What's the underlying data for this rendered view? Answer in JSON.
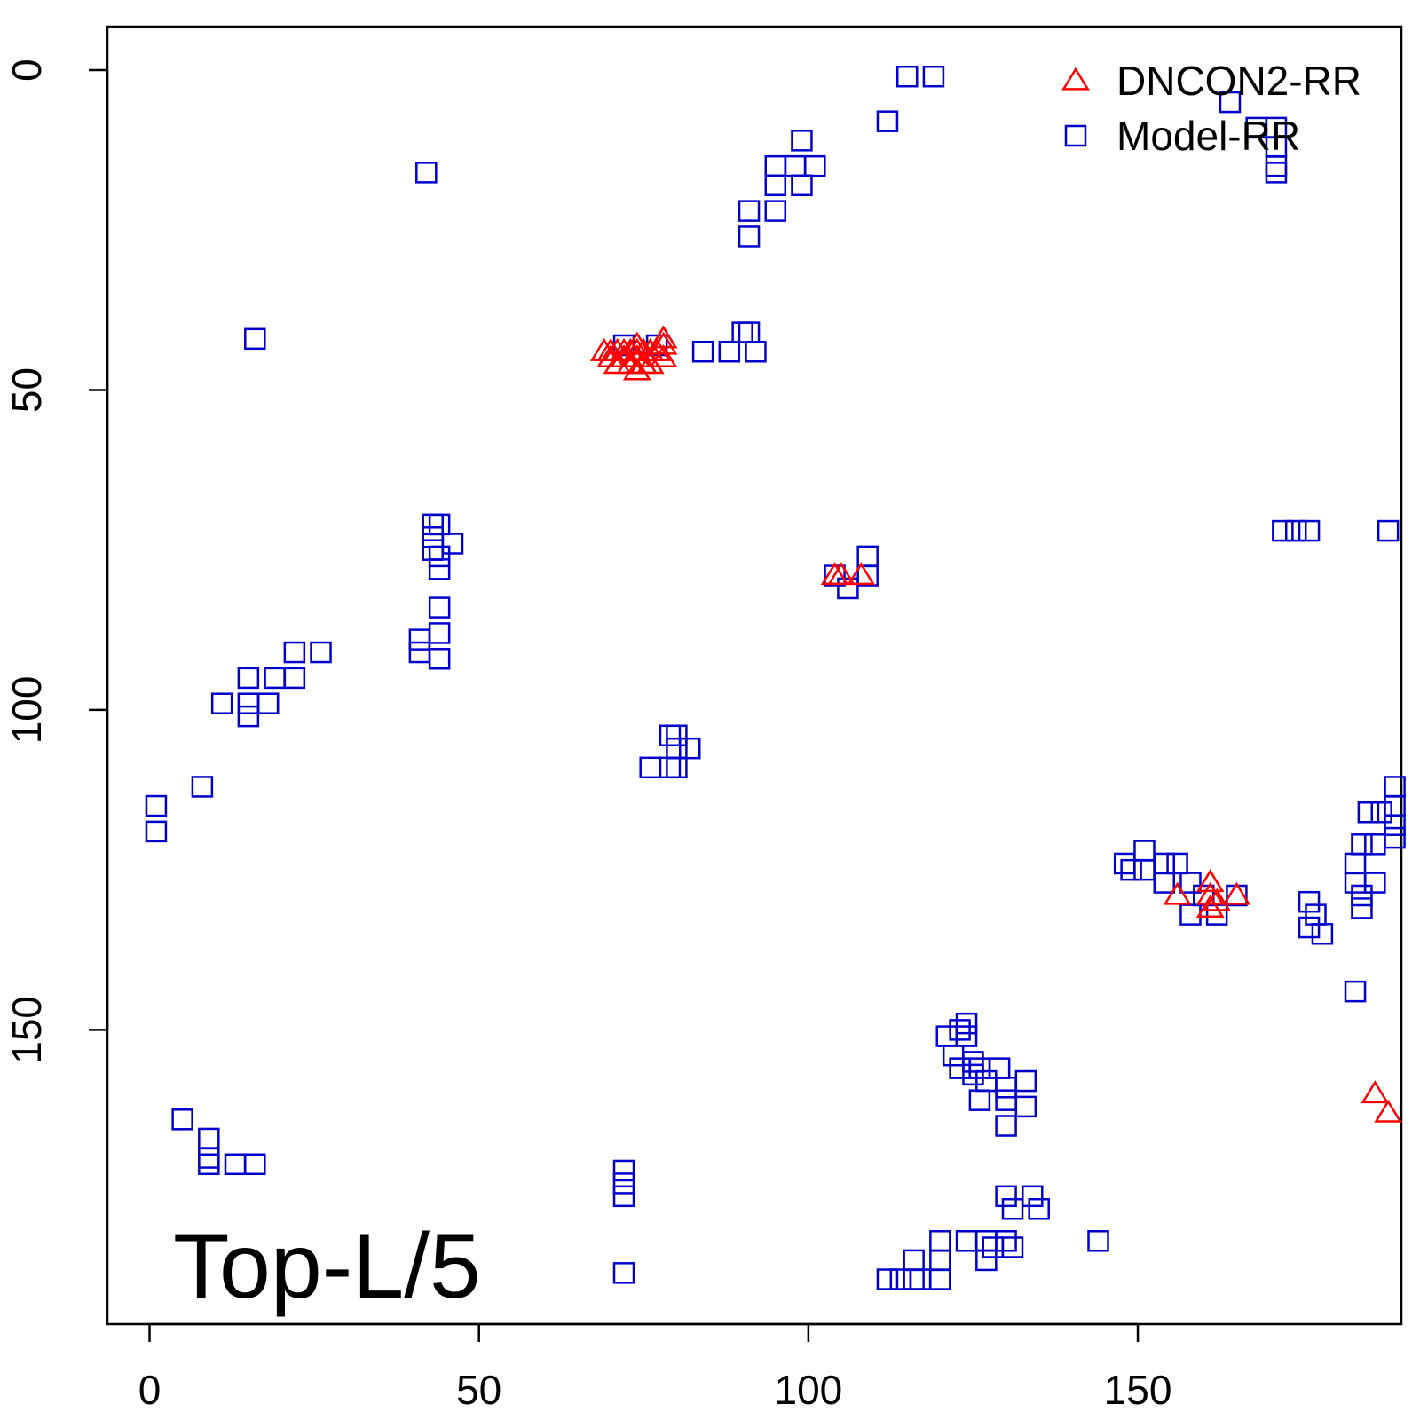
{
  "chart_data": {
    "type": "scatter",
    "title": "",
    "xlabel": "",
    "ylabel": "",
    "xlim": [
      -6.4,
      190
    ],
    "ylim": [
      -6.8,
      196
    ],
    "y_axis_reversed": true,
    "x_ticks": [
      0,
      50,
      100,
      150
    ],
    "x_tick_labels": [
      "0",
      "50",
      "100",
      "150"
    ],
    "y_ticks": [
      0,
      50,
      100,
      150
    ],
    "y_tick_labels": [
      "0",
      "50",
      "100",
      "150"
    ],
    "grid": false,
    "legend_position": "top-right",
    "annotation": "Top-L/5",
    "series": [
      {
        "name": "DNCON2-RR",
        "marker": "triangle",
        "color": "#ff0000",
        "points": [
          [
            69,
            44
          ],
          [
            70,
            44
          ],
          [
            71,
            44
          ],
          [
            72,
            44
          ],
          [
            73,
            44
          ],
          [
            74,
            44
          ],
          [
            75,
            44
          ],
          [
            76,
            44
          ],
          [
            77,
            44
          ],
          [
            78,
            43
          ],
          [
            70,
            45
          ],
          [
            72,
            45
          ],
          [
            74,
            45
          ],
          [
            76,
            46
          ],
          [
            78,
            45
          ],
          [
            71,
            46
          ],
          [
            73,
            46
          ],
          [
            75,
            46
          ],
          [
            74,
            47
          ],
          [
            74,
            43
          ],
          [
            78,
            42
          ],
          [
            104,
            79
          ],
          [
            105,
            79
          ],
          [
            108,
            79
          ],
          [
            156,
            129
          ],
          [
            161,
            127
          ],
          [
            161,
            129
          ],
          [
            162,
            130
          ],
          [
            161,
            131
          ],
          [
            165,
            129
          ],
          [
            186,
            160
          ],
          [
            188,
            163
          ]
        ]
      },
      {
        "name": "Model-RR",
        "marker": "square",
        "color": "#0000cc",
        "points": [
          [
            115,
            1
          ],
          [
            119,
            1
          ],
          [
            112,
            8
          ],
          [
            42,
            16
          ],
          [
            99,
            11
          ],
          [
            95,
            15
          ],
          [
            98,
            15
          ],
          [
            101,
            15
          ],
          [
            95,
            18
          ],
          [
            99,
            18
          ],
          [
            95,
            22
          ],
          [
            91,
            22
          ],
          [
            91,
            26
          ],
          [
            164,
            5
          ],
          [
            168,
            9
          ],
          [
            171,
            9
          ],
          [
            171,
            12
          ],
          [
            171,
            15
          ],
          [
            171,
            16
          ],
          [
            16,
            42
          ],
          [
            72,
            43
          ],
          [
            77,
            43
          ],
          [
            84,
            44
          ],
          [
            88,
            44
          ],
          [
            90,
            41
          ],
          [
            91,
            41
          ],
          [
            92,
            44
          ],
          [
            43,
            71
          ],
          [
            44,
            71
          ],
          [
            43,
            73
          ],
          [
            46,
            74
          ],
          [
            43,
            75
          ],
          [
            44,
            76
          ],
          [
            44,
            78
          ],
          [
            172,
            72
          ],
          [
            174,
            72
          ],
          [
            176,
            72
          ],
          [
            188,
            72
          ],
          [
            104,
            79
          ],
          [
            106,
            81
          ],
          [
            109,
            76
          ],
          [
            109,
            79
          ],
          [
            44,
            84
          ],
          [
            41,
            89
          ],
          [
            41,
            91
          ],
          [
            44,
            88
          ],
          [
            44,
            92
          ],
          [
            22,
            91
          ],
          [
            26,
            91
          ],
          [
            15,
            95
          ],
          [
            19,
            95
          ],
          [
            22,
            95
          ],
          [
            11,
            99
          ],
          [
            15,
            99
          ],
          [
            18,
            99
          ],
          [
            15,
            101
          ],
          [
            18,
            99
          ],
          [
            80,
            104
          ],
          [
            79,
            104
          ],
          [
            82,
            106
          ],
          [
            80,
            106
          ],
          [
            79,
            109
          ],
          [
            76,
            109
          ],
          [
            80,
            109
          ],
          [
            1,
            115
          ],
          [
            1,
            119
          ],
          [
            8,
            112
          ],
          [
            148,
            124
          ],
          [
            149,
            125
          ],
          [
            151,
            122
          ],
          [
            151,
            125
          ],
          [
            154,
            124
          ],
          [
            156,
            124
          ],
          [
            154,
            127
          ],
          [
            158,
            127
          ],
          [
            160,
            129
          ],
          [
            162,
            132
          ],
          [
            158,
            132
          ],
          [
            165,
            129
          ],
          [
            189,
            112
          ],
          [
            189,
            115
          ],
          [
            189,
            118
          ],
          [
            189,
            120
          ],
          [
            185,
            116
          ],
          [
            187,
            116
          ],
          [
            184,
            121
          ],
          [
            186,
            121
          ],
          [
            183,
            124
          ],
          [
            183,
            127
          ],
          [
            184,
            129
          ],
          [
            184,
            131
          ],
          [
            186,
            127
          ],
          [
            176,
            130
          ],
          [
            177,
            132
          ],
          [
            176,
            134
          ],
          [
            178,
            135
          ],
          [
            183,
            144
          ],
          [
            123,
            150
          ],
          [
            124,
            149
          ],
          [
            121,
            151
          ],
          [
            124,
            151
          ],
          [
            125,
            155
          ],
          [
            122,
            154
          ],
          [
            123,
            156
          ],
          [
            125,
            157
          ],
          [
            126,
            156
          ],
          [
            127,
            158
          ],
          [
            129,
            156
          ],
          [
            130,
            159
          ],
          [
            133,
            158
          ],
          [
            126,
            161
          ],
          [
            130,
            161
          ],
          [
            130,
            165
          ],
          [
            133,
            162
          ],
          [
            5,
            164
          ],
          [
            9,
            167
          ],
          [
            9,
            170
          ],
          [
            9,
            171
          ],
          [
            13,
            171
          ],
          [
            16,
            171
          ],
          [
            72,
            172
          ],
          [
            72,
            174
          ],
          [
            72,
            176
          ],
          [
            72,
            188
          ],
          [
            130,
            176
          ],
          [
            131,
            178
          ],
          [
            134,
            176
          ],
          [
            135,
            178
          ],
          [
            144,
            183
          ],
          [
            124,
            183
          ],
          [
            127,
            183
          ],
          [
            127,
            186
          ],
          [
            128,
            184
          ],
          [
            130,
            183
          ],
          [
            131,
            184
          ],
          [
            112,
            189
          ],
          [
            114,
            189
          ],
          [
            116,
            189
          ],
          [
            117,
            189
          ],
          [
            120,
            189
          ],
          [
            116,
            186
          ],
          [
            120,
            183
          ],
          [
            120,
            186
          ]
        ]
      }
    ]
  }
}
